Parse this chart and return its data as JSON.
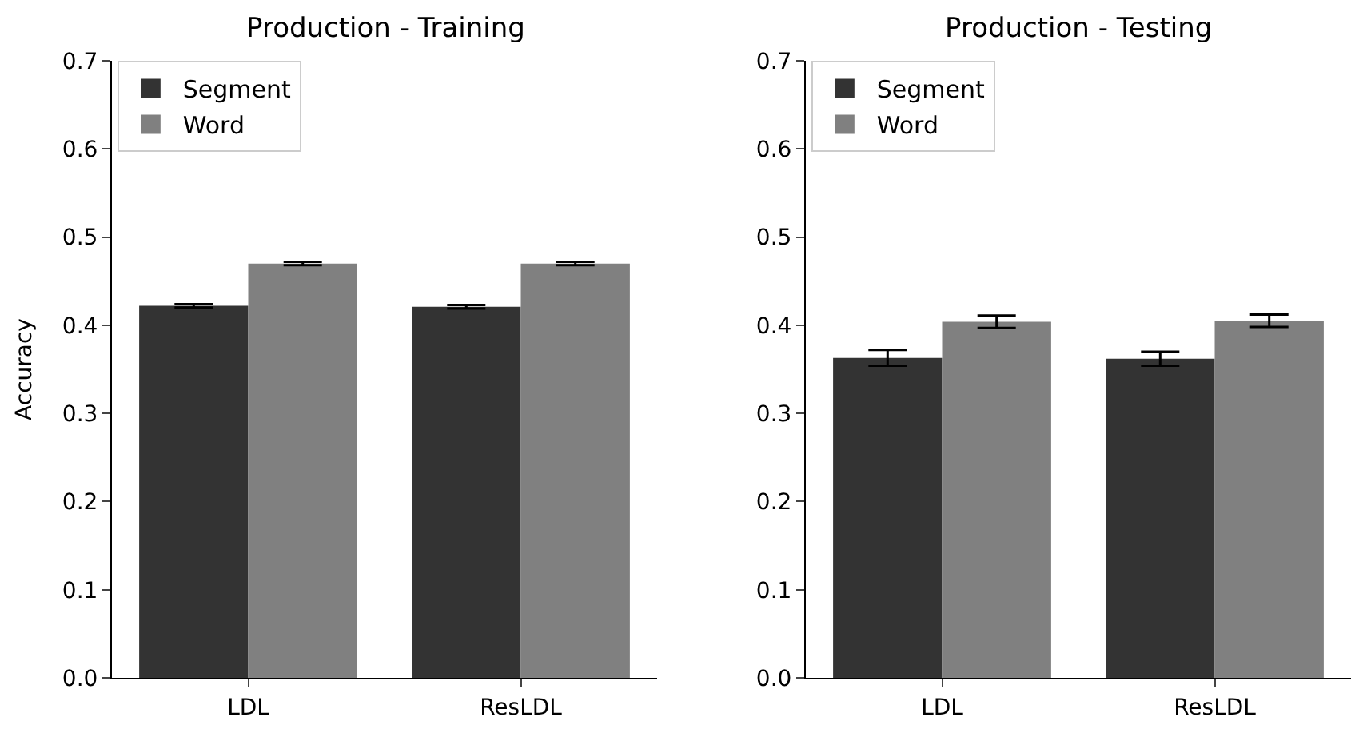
{
  "chart_data": [
    {
      "type": "bar",
      "title": "Production - Training",
      "ylabel": "Accuracy",
      "categories": [
        "LDL",
        "ResLDL"
      ],
      "series": [
        {
          "name": "Segment",
          "color": "#333333",
          "values": [
            0.422,
            0.421
          ],
          "errors": [
            0.002,
            0.002
          ]
        },
        {
          "name": "Word",
          "color": "#808080",
          "values": [
            0.47,
            0.47
          ],
          "errors": [
            0.002,
            0.002
          ]
        }
      ],
      "ylim": [
        0,
        0.7
      ],
      "yticks": [
        {
          "value": 0,
          "label": "0.0"
        },
        0.1,
        0.2,
        0.3,
        0.4,
        0.5,
        0.6,
        0.7
      ],
      "legend": "top left"
    },
    {
      "type": "bar",
      "title": "Production - Testing",
      "categories": [
        "LDL",
        "ResLDL"
      ],
      "series": [
        {
          "name": "Segment",
          "color": "#333333",
          "values": [
            0.363,
            0.362
          ],
          "errors": [
            0.009,
            0.008
          ]
        },
        {
          "name": "Word",
          "color": "#808080",
          "values": [
            0.404,
            0.405
          ],
          "errors": [
            0.007,
            0.007
          ]
        }
      ],
      "ylim": [
        0,
        0.7
      ],
      "yticks": [
        {
          "value": 0,
          "label": "0.0"
        },
        0.1,
        0.2,
        0.3,
        0.4,
        0.5,
        0.6,
        0.7
      ],
      "legend": "top left"
    }
  ]
}
